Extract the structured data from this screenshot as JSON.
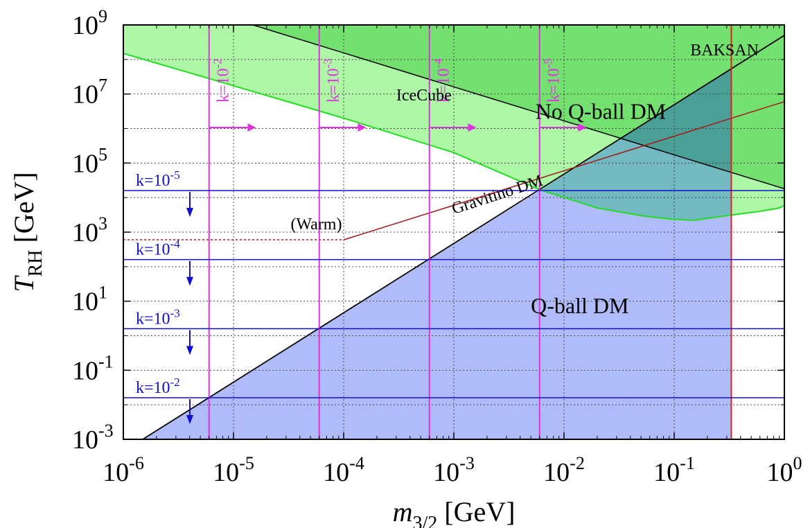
{
  "chart_data": {
    "type": "line",
    "xscale": "log",
    "yscale": "log",
    "xlim": [
      1e-06,
      1
    ],
    "ylim": [
      0.001,
      1000000000.0
    ],
    "grid": true,
    "x_ticks": [
      {
        "value": 1e-06,
        "base": "10",
        "exp": "-6"
      },
      {
        "value": 1e-05,
        "base": "10",
        "exp": "-5"
      },
      {
        "value": 0.0001,
        "base": "10",
        "exp": "-4"
      },
      {
        "value": 0.001,
        "base": "10",
        "exp": "-3"
      },
      {
        "value": 0.01,
        "base": "10",
        "exp": "-2"
      },
      {
        "value": 0.1,
        "base": "10",
        "exp": "-1"
      },
      {
        "value": 1,
        "base": "10",
        "exp": "0"
      }
    ],
    "y_ticks": [
      {
        "value": 0.001,
        "base": "10",
        "exp": "-3"
      },
      {
        "value": 0.1,
        "base": "10",
        "exp": "-1"
      },
      {
        "value": 10.0,
        "base": "10",
        "exp": "1"
      },
      {
        "value": 1000.0,
        "base": "10",
        "exp": "3"
      },
      {
        "value": 100000.0,
        "base": "10",
        "exp": "5"
      },
      {
        "value": 10000000.0,
        "base": "10",
        "exp": "7"
      },
      {
        "value": 1000000000.0,
        "base": "10",
        "exp": "9"
      }
    ],
    "xlabel": {
      "main": "m",
      "sub": "3/2",
      "unit": " [GeV]"
    },
    "ylabel": {
      "main": "T",
      "sub": "RH",
      "unit": " [GeV]"
    },
    "colors": {
      "qball_fill": "#b0bcfa",
      "icecube_fill": "#adf7a6",
      "baksan_fill": "#74e070",
      "overlap_fill": "#72b9c1",
      "overlap_dark_fill": "#4aa096",
      "icecube_line": "#22dd22",
      "k_vertical": "#e033e0",
      "k_horizontal": "#1111cc",
      "gravitino": "#a02020",
      "red_line": "#e02020",
      "grid": "#444444"
    },
    "qball_boundary": [
      [
        1.5e-06,
        0.001
      ],
      [
        0.006,
        16000.0
      ]
    ],
    "no_qball_boundary": [
      [
        0.006,
        16000.0
      ],
      [
        1,
        500000000.0
      ]
    ],
    "icecube_boundary": [
      [
        1e-06,
        150000000.0
      ],
      [
        0.0001,
        2000000.0
      ],
      [
        0.001,
        200000.0
      ],
      [
        0.006,
        17000.0
      ],
      [
        0.02,
        5000.0
      ],
      [
        0.05,
        3000.0
      ],
      [
        0.09,
        2400.0
      ],
      [
        0.15,
        2200.0
      ],
      [
        0.3,
        3000.0
      ],
      [
        0.6,
        4000.0
      ],
      [
        0.9,
        5000.0
      ],
      [
        1,
        6000.0
      ]
    ],
    "baksan_boundary": [
      [
        1.5e-05,
        1000000000.0
      ],
      [
        1,
        18000.0
      ]
    ],
    "gravitino_line": [
      [
        0.0001,
        600.0
      ],
      [
        1,
        6000000.0
      ]
    ],
    "warm_line": [
      [
        1e-06,
        600.0
      ],
      [
        0.0001,
        600.0
      ]
    ],
    "red_vertical_x": 0.33,
    "k_vertical": [
      {
        "x": 6e-06,
        "label": "k=10",
        "exp": "-2",
        "arrow_to": 1.6e-05
      },
      {
        "x": 6e-05,
        "label": "k=10",
        "exp": "-3",
        "arrow_to": 0.00016
      },
      {
        "x": 0.0006,
        "label": "k=10",
        "exp": "-4",
        "arrow_to": 0.0016
      },
      {
        "x": 0.006,
        "label": "k=10",
        "exp": "-5",
        "arrow_to": 0.016
      }
    ],
    "k_horizontal": [
      {
        "y": 16000.0,
        "label": "k=10",
        "exp": "-5"
      },
      {
        "y": 160.0,
        "label": "k=10",
        "exp": "-4"
      },
      {
        "y": 1.6,
        "label": "k=10",
        "exp": "-3"
      },
      {
        "y": 0.016,
        "label": "k=10",
        "exp": "-2"
      }
    ],
    "annotations": [
      {
        "text": "BAKSAN",
        "x": 0.14,
        "y": 130000000.0,
        "size": "small"
      },
      {
        "text": "IceCube",
        "x": 0.0003,
        "y": 6500000.0,
        "size": "small"
      },
      {
        "text": "No Q-ball DM",
        "x": 0.0055,
        "y": 1900000.0,
        "size": "large"
      },
      {
        "text": "Q-ball DM",
        "x": 0.005,
        "y": 4.5,
        "size": "large"
      },
      {
        "text": "(Warm)",
        "x": 3.3e-05,
        "y": 1200.0,
        "size": "small",
        "color": "gravitino"
      },
      {
        "text": "Gravitino DM",
        "x": 0.001,
        "y": 3300.0,
        "size": "small",
        "color": "gravitino",
        "rotate": -18
      }
    ]
  }
}
